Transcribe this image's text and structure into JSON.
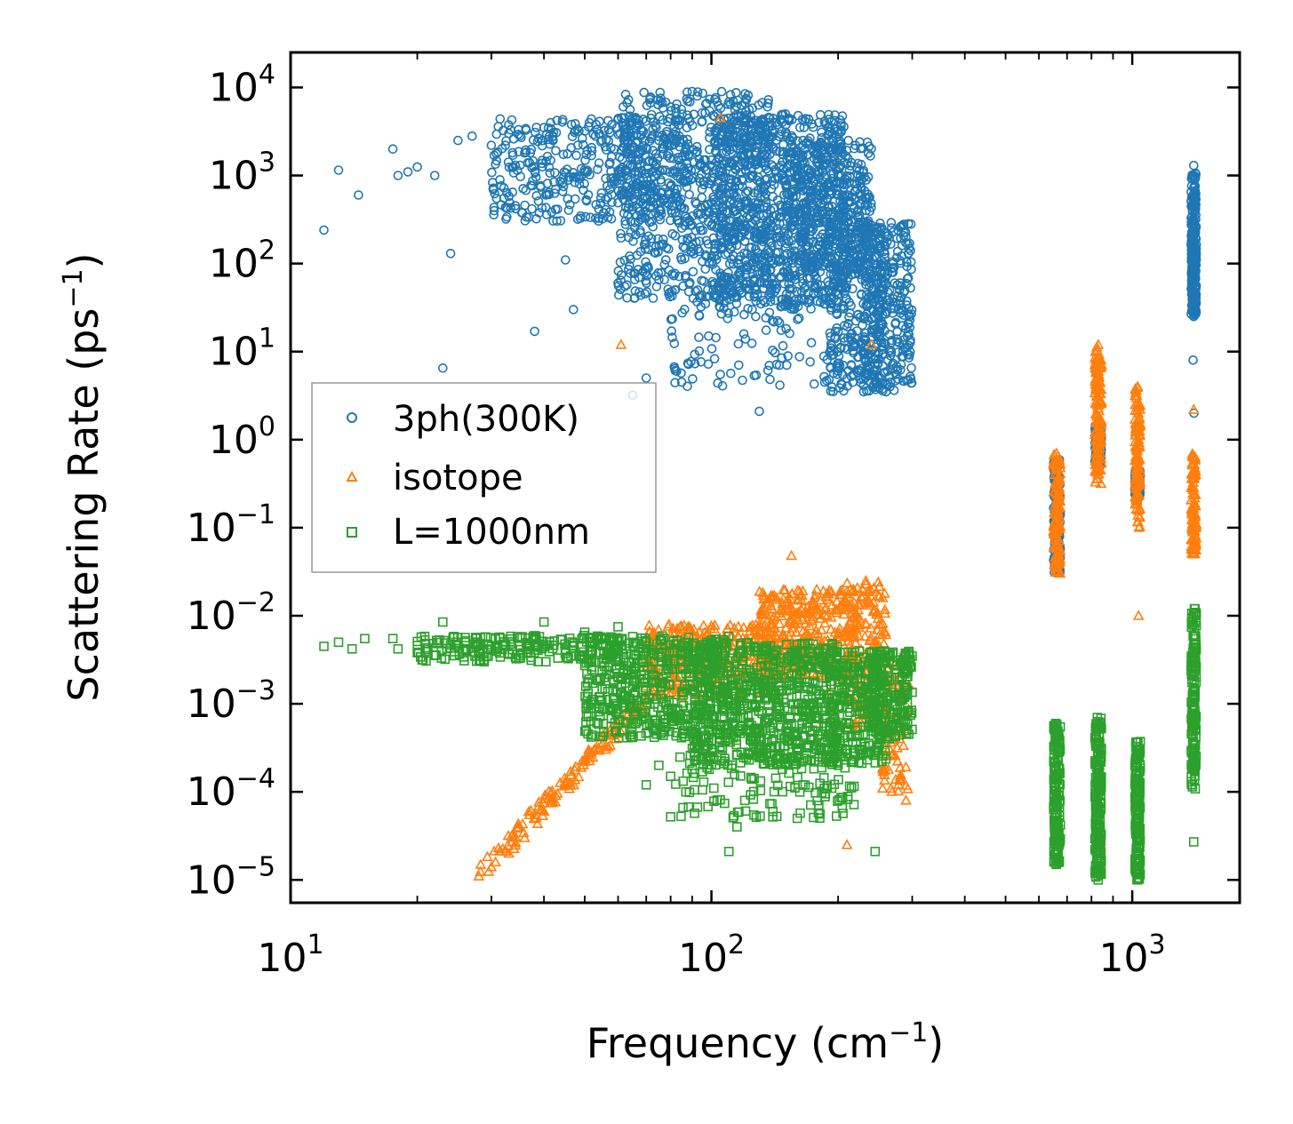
{
  "chart_data": {
    "type": "scatter",
    "title": "",
    "xlabel": "Frequency (cm",
    "xlabel_sup": "−1",
    "xlabel_end": ")",
    "ylabel": "Scattering Rate (ps",
    "ylabel_sup": "−1",
    "ylabel_end": ")",
    "xscale": "log",
    "yscale": "log",
    "xlim": [
      10,
      1800
    ],
    "ylim": [
      5.5e-06,
      25000
    ],
    "x_ticks": [
      {
        "value": 10,
        "base": "10",
        "exp": "1"
      },
      {
        "value": 100,
        "base": "10",
        "exp": "2"
      },
      {
        "value": 1000,
        "base": "10",
        "exp": "3"
      }
    ],
    "y_ticks": [
      {
        "value": 1e-05,
        "base": "10",
        "exp": "−5"
      },
      {
        "value": 0.0001,
        "base": "10",
        "exp": "−4"
      },
      {
        "value": 0.001,
        "base": "10",
        "exp": "−3"
      },
      {
        "value": 0.01,
        "base": "10",
        "exp": "−2"
      },
      {
        "value": 0.1,
        "base": "10",
        "exp": "−1"
      },
      {
        "value": 1,
        "base": "10",
        "exp": "0"
      },
      {
        "value": 10,
        "base": "10",
        "exp": "1"
      },
      {
        "value": 100,
        "base": "10",
        "exp": "2"
      },
      {
        "value": 1000,
        "base": "10",
        "exp": "3"
      },
      {
        "value": 10000,
        "base": "10",
        "exp": "4"
      }
    ],
    "legend_position": "center-left",
    "series": [
      {
        "name": "3ph(300K)",
        "color": "#1f77b4",
        "marker": "circle",
        "points": [
          [
            12,
            240
          ],
          [
            13,
            1150
          ],
          [
            14.5,
            600
          ],
          [
            17.5,
            2000
          ],
          [
            18,
            1000
          ],
          [
            19,
            1100
          ],
          [
            20,
            1250
          ],
          [
            22,
            1000
          ],
          [
            23,
            6.5
          ],
          [
            24,
            130
          ],
          [
            25,
            2500
          ],
          [
            27,
            2800
          ],
          [
            30,
            2200
          ],
          [
            33,
            3000
          ],
          [
            36,
            1800
          ],
          [
            38,
            17
          ],
          [
            40,
            3500
          ],
          [
            42,
            2800
          ],
          [
            45,
            110
          ],
          [
            47,
            30
          ],
          [
            50,
            3200
          ],
          [
            55,
            2500
          ],
          [
            58,
            800
          ],
          [
            60,
            60
          ],
          [
            63,
            2000
          ],
          [
            65,
            3.2
          ],
          [
            68,
            500
          ],
          [
            70,
            5
          ],
          [
            72,
            300
          ],
          [
            75,
            2500
          ],
          [
            80,
            6000
          ],
          [
            85,
            4.5
          ],
          [
            90,
            9000
          ],
          [
            95,
            700
          ],
          [
            100,
            1500
          ],
          [
            105,
            5.5
          ],
          [
            110,
            900
          ],
          [
            115,
            300
          ],
          [
            120,
            4000
          ],
          [
            125,
            30
          ],
          [
            130,
            2.1
          ],
          [
            135,
            200
          ],
          [
            140,
            2000
          ],
          [
            145,
            7
          ],
          [
            150,
            5000
          ],
          [
            160,
            1200
          ],
          [
            170,
            300
          ],
          [
            180,
            4000
          ],
          [
            190,
            50
          ],
          [
            200,
            6
          ],
          [
            210,
            800
          ],
          [
            220,
            12
          ],
          [
            230,
            3.5
          ],
          [
            240,
            200
          ],
          [
            250,
            20
          ],
          [
            260,
            3.5
          ],
          [
            270,
            100
          ],
          [
            280,
            50
          ],
          [
            290,
            200
          ],
          [
            660,
            0.2
          ],
          [
            665,
            0.05
          ],
          [
            830,
            1.1
          ],
          [
            835,
            0.9
          ],
          [
            1030,
            0.3
          ],
          [
            1035,
            0.35
          ],
          [
            1400,
            1300
          ],
          [
            1405,
            600
          ],
          [
            1410,
            100
          ],
          [
            1400,
            25
          ],
          [
            1395,
            8
          ],
          [
            1402,
            2
          ]
        ],
        "clusters": [
          {
            "x": [
              30,
              90
            ],
            "y": [
              300,
              4500
            ],
            "n": 420
          },
          {
            "x": [
              60,
              140
            ],
            "y": [
              40,
              9000
            ],
            "n": 700
          },
          {
            "x": [
              100,
              210
            ],
            "y": [
              30,
              5000
            ],
            "n": 800
          },
          {
            "x": [
              80,
              200
            ],
            "y": [
              4,
              60
            ],
            "n": 120
          },
          {
            "x": [
              150,
              240
            ],
            "y": [
              80,
              2500
            ],
            "n": 400
          },
          {
            "x": [
              190,
              260
            ],
            "y": [
              3.5,
              300
            ],
            "n": 260
          },
          {
            "x": [
              230,
              300
            ],
            "y": [
              3.5,
              300
            ],
            "n": 300
          },
          {
            "x": [
              650,
              675
            ],
            "y": [
              0.03,
              0.6
            ],
            "n": 150
          },
          {
            "x": [
              815,
              845
            ],
            "y": [
              0.5,
              1.5
            ],
            "n": 120
          },
          {
            "x": [
              1015,
              1045
            ],
            "y": [
              0.22,
              0.45
            ],
            "n": 100
          },
          {
            "x": [
              1380,
              1420
            ],
            "y": [
              25,
              1100
            ],
            "n": 250
          }
        ]
      },
      {
        "name": "isotope",
        "color": "#ff7f0e",
        "marker": "triangle",
        "points": [
          [
            28,
            1.1e-05
          ],
          [
            30,
            1.4e-05
          ],
          [
            33,
            2e-05
          ],
          [
            36,
            3e-05
          ],
          [
            40,
            6e-05
          ],
          [
            45,
            0.00013
          ],
          [
            50,
            0.00022
          ],
          [
            55,
            0.00035
          ],
          [
            60,
            0.0006
          ],
          [
            61,
            12
          ],
          [
            65,
            0.0008
          ],
          [
            70,
            0.0011
          ],
          [
            80,
            0.002
          ],
          [
            90,
            0.003
          ],
          [
            100,
            0.004
          ],
          [
            105,
            4500
          ],
          [
            110,
            0.005
          ],
          [
            130,
            0.008
          ],
          [
            150,
            0.012
          ],
          [
            155,
            0.048
          ],
          [
            170,
            0.011
          ],
          [
            190,
            0.0013
          ],
          [
            210,
            2.5e-05
          ],
          [
            230,
            0.0022
          ],
          [
            240,
            12
          ],
          [
            250,
            0.008
          ],
          [
            260,
            0.0008
          ],
          [
            280,
            0.0004
          ],
          [
            290,
            8e-05
          ],
          [
            660,
            0.7
          ],
          [
            665,
            2.5e-05
          ],
          [
            830,
            12
          ],
          [
            835,
            0.0002
          ],
          [
            1030,
            4
          ],
          [
            1035,
            0.01
          ],
          [
            1400,
            2.2
          ],
          [
            1405,
            0.6
          ]
        ],
        "clusters": [
          {
            "x": [
              28,
              70
            ],
            "y": [
              1.1e-05,
              0.0012
            ],
            "n": 120,
            "trend": true
          },
          {
            "x": [
              70,
              140
            ],
            "y": [
              0.0012,
              0.008
            ],
            "n": 300
          },
          {
            "x": [
              130,
              220
            ],
            "y": [
              0.002,
              0.02
            ],
            "n": 350
          },
          {
            "x": [
              210,
              260
            ],
            "y": [
              0.0005,
              0.025
            ],
            "n": 150
          },
          {
            "x": [
              255,
              295
            ],
            "y": [
              0.0001,
              0.003
            ],
            "n": 80
          },
          {
            "x": [
              650,
              675
            ],
            "y": [
              0.03,
              0.7
            ],
            "n": 120
          },
          {
            "x": [
              815,
              845
            ],
            "y": [
              0.3,
              12
            ],
            "n": 140
          },
          {
            "x": [
              1015,
              1045
            ],
            "y": [
              0.1,
              4
            ],
            "n": 120
          },
          {
            "x": [
              1380,
              1420
            ],
            "y": [
              0.05,
              0.7
            ],
            "n": 100
          }
        ]
      },
      {
        "name": "L=1000nm",
        "color": "#2ca02c",
        "marker": "square",
        "points": [
          [
            12,
            0.0045
          ],
          [
            13,
            0.005
          ],
          [
            14,
            0.0042
          ],
          [
            15,
            0.0055
          ],
          [
            17.5,
            0.0055
          ],
          [
            18,
            0.0042
          ],
          [
            20,
            0.0038
          ],
          [
            23,
            0.0085
          ],
          [
            25,
            0.005
          ],
          [
            28,
            0.004
          ],
          [
            30,
            0.0045
          ],
          [
            35,
            0.0045
          ],
          [
            40,
            0.0085
          ],
          [
            45,
            0.004
          ],
          [
            50,
            0.0065
          ],
          [
            55,
            0.0055
          ],
          [
            60,
            0.0075
          ],
          [
            65,
            0.0009
          ],
          [
            70,
            0.00012
          ],
          [
            75,
            0.0002
          ],
          [
            80,
            0.00015
          ],
          [
            90,
            0.00018
          ],
          [
            100,
            0.0003
          ],
          [
            110,
            2.1e-05
          ],
          [
            115,
            4e-05
          ],
          [
            120,
            8e-05
          ],
          [
            140,
            6e-05
          ],
          [
            160,
            5e-05
          ],
          [
            180,
            7e-05
          ],
          [
            200,
            0.0002
          ],
          [
            220,
            0.0005
          ],
          [
            245,
            2.1e-05
          ],
          [
            250,
            0.0003
          ],
          [
            280,
            0.002
          ],
          [
            290,
            0.0035
          ],
          [
            660,
            1.5e-05
          ],
          [
            830,
            1e-05
          ],
          [
            1030,
            1e-05
          ],
          [
            1400,
            2.7e-05
          ],
          [
            1405,
            0.012
          ]
        ],
        "clusters": [
          {
            "x": [
              20,
              60
            ],
            "y": [
              0.003,
              0.006
            ],
            "n": 200
          },
          {
            "x": [
              50,
              110
            ],
            "y": [
              0.0004,
              0.006
            ],
            "n": 500
          },
          {
            "x": [
              90,
              200
            ],
            "y": [
              0.0002,
              0.005
            ],
            "n": 700
          },
          {
            "x": [
              80,
              220
            ],
            "y": [
              5e-05,
              0.0003
            ],
            "n": 120
          },
          {
            "x": [
              190,
              260
            ],
            "y": [
              0.0002,
              0.004
            ],
            "n": 250
          },
          {
            "x": [
              240,
              300
            ],
            "y": [
              0.0004,
              0.004
            ],
            "n": 200
          },
          {
            "x": [
              650,
              675
            ],
            "y": [
              1.5e-05,
              0.0006
            ],
            "n": 160
          },
          {
            "x": [
              815,
              845
            ],
            "y": [
              1e-05,
              0.0007
            ],
            "n": 200
          },
          {
            "x": [
              1015,
              1045
            ],
            "y": [
              1e-05,
              0.00038
            ],
            "n": 160
          },
          {
            "x": [
              1380,
              1420
            ],
            "y": [
              0.0001,
              0.012
            ],
            "n": 160
          }
        ]
      }
    ]
  }
}
